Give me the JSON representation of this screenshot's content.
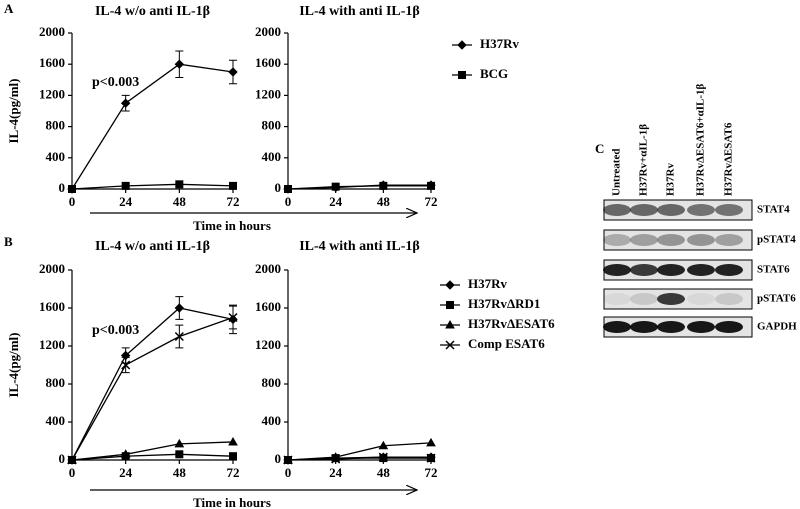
{
  "panel_labels": [
    "A",
    "B",
    "C"
  ],
  "chart_data": [
    {
      "type": "line",
      "title": "IL-4 w/o anti IL-1β",
      "y_label": "IL-4(pg/ml)",
      "x_label": "Time in hours",
      "annotation": "p<0.003",
      "x": [
        0,
        24,
        48,
        72
      ],
      "xlim": [
        0,
        72
      ],
      "xticks": [
        0,
        24,
        48,
        72
      ],
      "ylim": [
        0,
        2000
      ],
      "yticks": [
        0,
        400,
        800,
        1200,
        1600,
        2000
      ],
      "series": [
        {
          "name": "H37Rv",
          "marker": "diamond",
          "color": "#000000",
          "values": [
            0,
            1100,
            1600,
            1500
          ],
          "errors": [
            0,
            100,
            170,
            150
          ]
        },
        {
          "name": "BCG",
          "marker": "square",
          "color": "#000000",
          "values": [
            0,
            40,
            60,
            40
          ]
        }
      ]
    },
    {
      "type": "line",
      "title": "IL-4 with anti IL-1β",
      "x": [
        0,
        24,
        48,
        72
      ],
      "xlim": [
        0,
        72
      ],
      "xticks": [
        0,
        24,
        48,
        72
      ],
      "ylim": [
        0,
        2000
      ],
      "yticks": [
        0,
        400,
        800,
        1200,
        1600,
        2000
      ],
      "series": [
        {
          "marker": "diamond",
          "color": "#000000",
          "values": [
            0,
            20,
            50,
            50
          ]
        },
        {
          "marker": "square",
          "color": "#000000",
          "values": [
            0,
            30,
            40,
            40
          ]
        }
      ]
    },
    {
      "type": "line",
      "title": "IL-4 w/o anti IL-1β",
      "y_label": "IL-4(pg/ml)",
      "x_label": "Time in hours",
      "annotation": "p<0.003",
      "x": [
        0,
        24,
        48,
        72
      ],
      "xlim": [
        0,
        72
      ],
      "xticks": [
        0,
        24,
        48,
        72
      ],
      "ylim": [
        0,
        2000
      ],
      "yticks": [
        0,
        400,
        800,
        1200,
        1600,
        2000
      ],
      "series": [
        {
          "name": "H37Rv",
          "marker": "diamond",
          "color": "#000000",
          "values": [
            0,
            1100,
            1600,
            1480
          ],
          "errors": [
            0,
            80,
            120,
            150
          ]
        },
        {
          "name": "H37RvΔRD1",
          "marker": "square",
          "color": "#000000",
          "values": [
            0,
            40,
            60,
            40
          ]
        },
        {
          "name": "H37RvΔESAT6",
          "marker": "triangle",
          "color": "#000000",
          "values": [
            0,
            60,
            170,
            190
          ]
        },
        {
          "name": "Comp ESAT6",
          "marker": "cross",
          "color": "#000000",
          "values": [
            0,
            1000,
            1300,
            1500
          ],
          "errors": [
            0,
            80,
            120,
            120
          ]
        }
      ]
    },
    {
      "type": "line",
      "title": "IL-4 with anti IL-1β",
      "x": [
        0,
        24,
        48,
        72
      ],
      "xlim": [
        0,
        72
      ],
      "xticks": [
        0,
        24,
        48,
        72
      ],
      "ylim": [
        0,
        2000
      ],
      "yticks": [
        0,
        400,
        800,
        1200,
        1600,
        2000
      ],
      "series": [
        {
          "marker": "diamond",
          "color": "#000000",
          "values": [
            0,
            20,
            30,
            30
          ]
        },
        {
          "marker": "square",
          "color": "#000000",
          "values": [
            0,
            20,
            20,
            20
          ]
        },
        {
          "marker": "triangle",
          "color": "#000000",
          "values": [
            0,
            30,
            150,
            180
          ]
        },
        {
          "marker": "cross",
          "color": "#000000",
          "values": [
            0,
            10,
            30,
            20
          ]
        }
      ]
    }
  ],
  "blot": {
    "columns": [
      "Untreated",
      "H37Rv+αIL-1β",
      "H37Rv",
      "H37RvΔESAT6+αIL-1β",
      "H37RvΔESAT6"
    ],
    "rows": [
      "STAT4",
      "pSTAT4",
      "STAT6",
      "pSTAT6",
      "GAPDH"
    ]
  }
}
